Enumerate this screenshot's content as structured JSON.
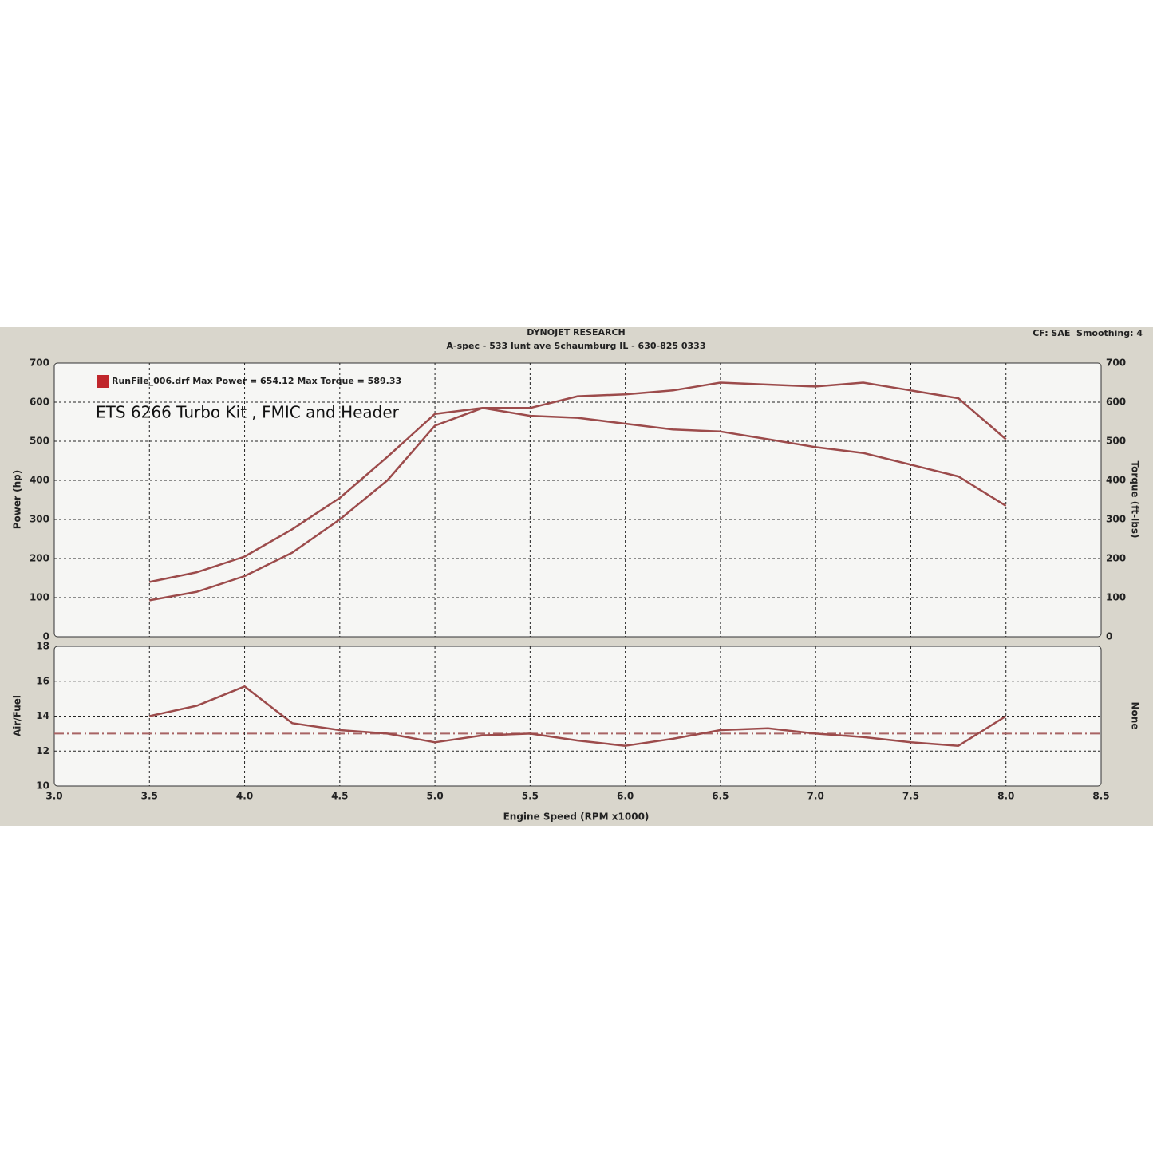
{
  "chart_data": [
    {
      "type": "line",
      "title": "DYNOJET RESEARCH",
      "subtitle": "A-spec - 533 lunt ave Schaumburg IL - 630-825 0333",
      "corner_note": "CF: SAE  Smoothing: 4",
      "legend_label": "RunFile_006.drf Max Power = 654.12 Max Torque = 589.33",
      "annotation": "ETS 6266 Turbo Kit , FMIC and Header",
      "ylabel": "Power (hp)",
      "y2label": "Torque (ft-lbs)",
      "x": [
        3.5,
        3.75,
        4.0,
        4.25,
        4.5,
        4.75,
        5.0,
        5.25,
        5.5,
        5.75,
        6.0,
        6.25,
        6.5,
        6.75,
        7.0,
        7.25,
        7.5,
        7.75,
        8.0
      ],
      "series": [
        {
          "color": "#9c4b4b",
          "values": [
            93,
            115,
            155,
            215,
            300,
            400,
            540,
            585,
            585,
            615,
            620,
            630,
            650,
            645,
            640,
            650,
            630,
            610,
            505
          ]
        },
        {
          "color": "#9c4b4b",
          "axis": "y2",
          "values": [
            140,
            165,
            205,
            275,
            355,
            460,
            570,
            585,
            565,
            560,
            545,
            530,
            525,
            505,
            485,
            470,
            440,
            410,
            335
          ]
        }
      ],
      "xlim": [
        3,
        8.5
      ],
      "ylim": [
        0,
        700
      ],
      "yticks": [
        0,
        100,
        200,
        300,
        400,
        500,
        600,
        700
      ],
      "y2lim": [
        0,
        700
      ],
      "y2ticks": [
        0,
        100,
        200,
        300,
        400,
        500,
        600,
        700
      ],
      "grid": true
    },
    {
      "type": "line",
      "ylabel": "Air/Fuel",
      "y2label": "None",
      "xlabel": "Engine Speed (RPM x1000)",
      "x": [
        3.5,
        3.75,
        4.0,
        4.25,
        4.5,
        4.75,
        5.0,
        5.25,
        5.5,
        5.75,
        6.0,
        6.25,
        6.5,
        6.75,
        7.0,
        7.25,
        7.5,
        7.75,
        8.0
      ],
      "series": [
        {
          "color": "#9c4b4b",
          "values": [
            14.0,
            14.6,
            15.7,
            13.6,
            13.2,
            13.0,
            12.5,
            12.9,
            13.0,
            12.6,
            12.3,
            12.7,
            13.2,
            13.3,
            13.0,
            12.8,
            12.5,
            12.3,
            14.0
          ]
        }
      ],
      "reference_line": 13,
      "reference_color": "#a86464",
      "xlim": [
        3,
        8.5
      ],
      "xticks": [
        {
          "value": 3,
          "label": "3.0"
        },
        {
          "value": 3.5,
          "label": "3.5"
        },
        {
          "value": 4,
          "label": "4.0"
        },
        {
          "value": 4.5,
          "label": "4.5"
        },
        {
          "value": 5,
          "label": "5.0"
        },
        {
          "value": 5.5,
          "label": "5.5"
        },
        {
          "value": 6,
          "label": "6.0"
        },
        {
          "value": 6.5,
          "label": "6.5"
        },
        {
          "value": 7,
          "label": "7.0"
        },
        {
          "value": 7.5,
          "label": "7.5"
        },
        {
          "value": 8,
          "label": "8.0"
        },
        {
          "value": 8.5,
          "label": "8.5"
        }
      ],
      "ylim": [
        10,
        18
      ],
      "yticks": [
        10,
        12,
        14,
        16,
        18
      ],
      "grid": true
    }
  ]
}
